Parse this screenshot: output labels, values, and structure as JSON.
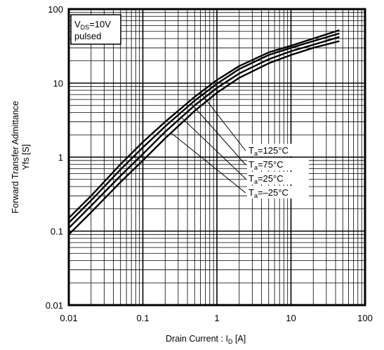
{
  "chart_data": {
    "type": "line",
    "x_scale": "log",
    "y_scale": "log",
    "xlim": [
      0.01,
      100
    ],
    "ylim": [
      0.01,
      100
    ],
    "grid": true,
    "x_ticks": [
      "0.01",
      "0.1",
      "1",
      "10",
      "100"
    ],
    "y_ticks": [
      "0.01",
      "0.1",
      "1",
      "10",
      "100"
    ],
    "xlabel": {
      "main": "Drain Current :  I",
      "sub": "D",
      "unit": " [A]"
    },
    "ylabel": {
      "line1": "Forward Transfer Admittance",
      "line2": "Yfs [S]"
    },
    "condition": {
      "line1_main": "V",
      "line1_sub": "DS",
      "line1_rest": "=10V",
      "line2": "pulsed"
    },
    "series": [
      {
        "name": "Ta=125°C",
        "label_main": "T",
        "label_sub": "a",
        "label_rest": "=125°C",
        "x": [
          0.01,
          0.02,
          0.05,
          0.1,
          0.2,
          0.5,
          1,
          2,
          5,
          10,
          20,
          45
        ],
        "y": [
          0.15,
          0.3,
          0.8,
          1.6,
          3.0,
          6.5,
          11,
          17,
          26,
          32,
          40,
          52
        ]
      },
      {
        "name": "Ta=75°C",
        "label_main": "T",
        "label_sub": "a",
        "label_rest": "=75°C",
        "x": [
          0.01,
          0.02,
          0.05,
          0.1,
          0.2,
          0.5,
          1,
          2,
          5,
          10,
          20,
          45
        ],
        "y": [
          0.13,
          0.26,
          0.68,
          1.35,
          2.6,
          5.8,
          9.8,
          15.5,
          24,
          30,
          37,
          47
        ]
      },
      {
        "name": "Ta=25°C",
        "label_main": "T",
        "label_sub": "a",
        "label_rest": "=25°C",
        "x": [
          0.01,
          0.02,
          0.05,
          0.1,
          0.2,
          0.5,
          1,
          2,
          5,
          10,
          20,
          45
        ],
        "y": [
          0.11,
          0.22,
          0.56,
          1.1,
          2.2,
          5.0,
          8.6,
          13.5,
          21,
          27,
          33,
          42
        ]
      },
      {
        "name": "Ta=-25°C",
        "label_main": "T",
        "label_sub": "a",
        "label_rest": "=–25°C",
        "x": [
          0.01,
          0.02,
          0.05,
          0.1,
          0.2,
          0.5,
          1,
          2,
          5,
          10,
          20,
          45
        ],
        "y": [
          0.09,
          0.18,
          0.46,
          0.9,
          1.8,
          4.2,
          7.4,
          11.8,
          18.5,
          24,
          30,
          37
        ]
      }
    ]
  }
}
